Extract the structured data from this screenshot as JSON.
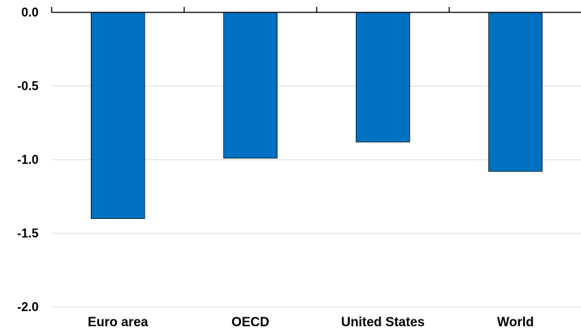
{
  "chart_data": {
    "type": "bar",
    "title": "",
    "xlabel": "",
    "ylabel": "",
    "categories": [
      "Euro area",
      "OECD",
      "United States",
      "World"
    ],
    "values": [
      -1.4,
      -0.99,
      -0.88,
      -1.08
    ],
    "ylim": [
      -2.0,
      0.0
    ],
    "yticks": [
      "0.0",
      "-0.5",
      "-1.0",
      "-1.5",
      "-2.0"
    ],
    "ytick_values": [
      0.0,
      -0.5,
      -1.0,
      -1.5,
      -2.0
    ],
    "grid": true,
    "legend": "none",
    "colors": {
      "bar": "#0070c0",
      "grid": "#d9d9d9",
      "axis": "#000000"
    }
  }
}
